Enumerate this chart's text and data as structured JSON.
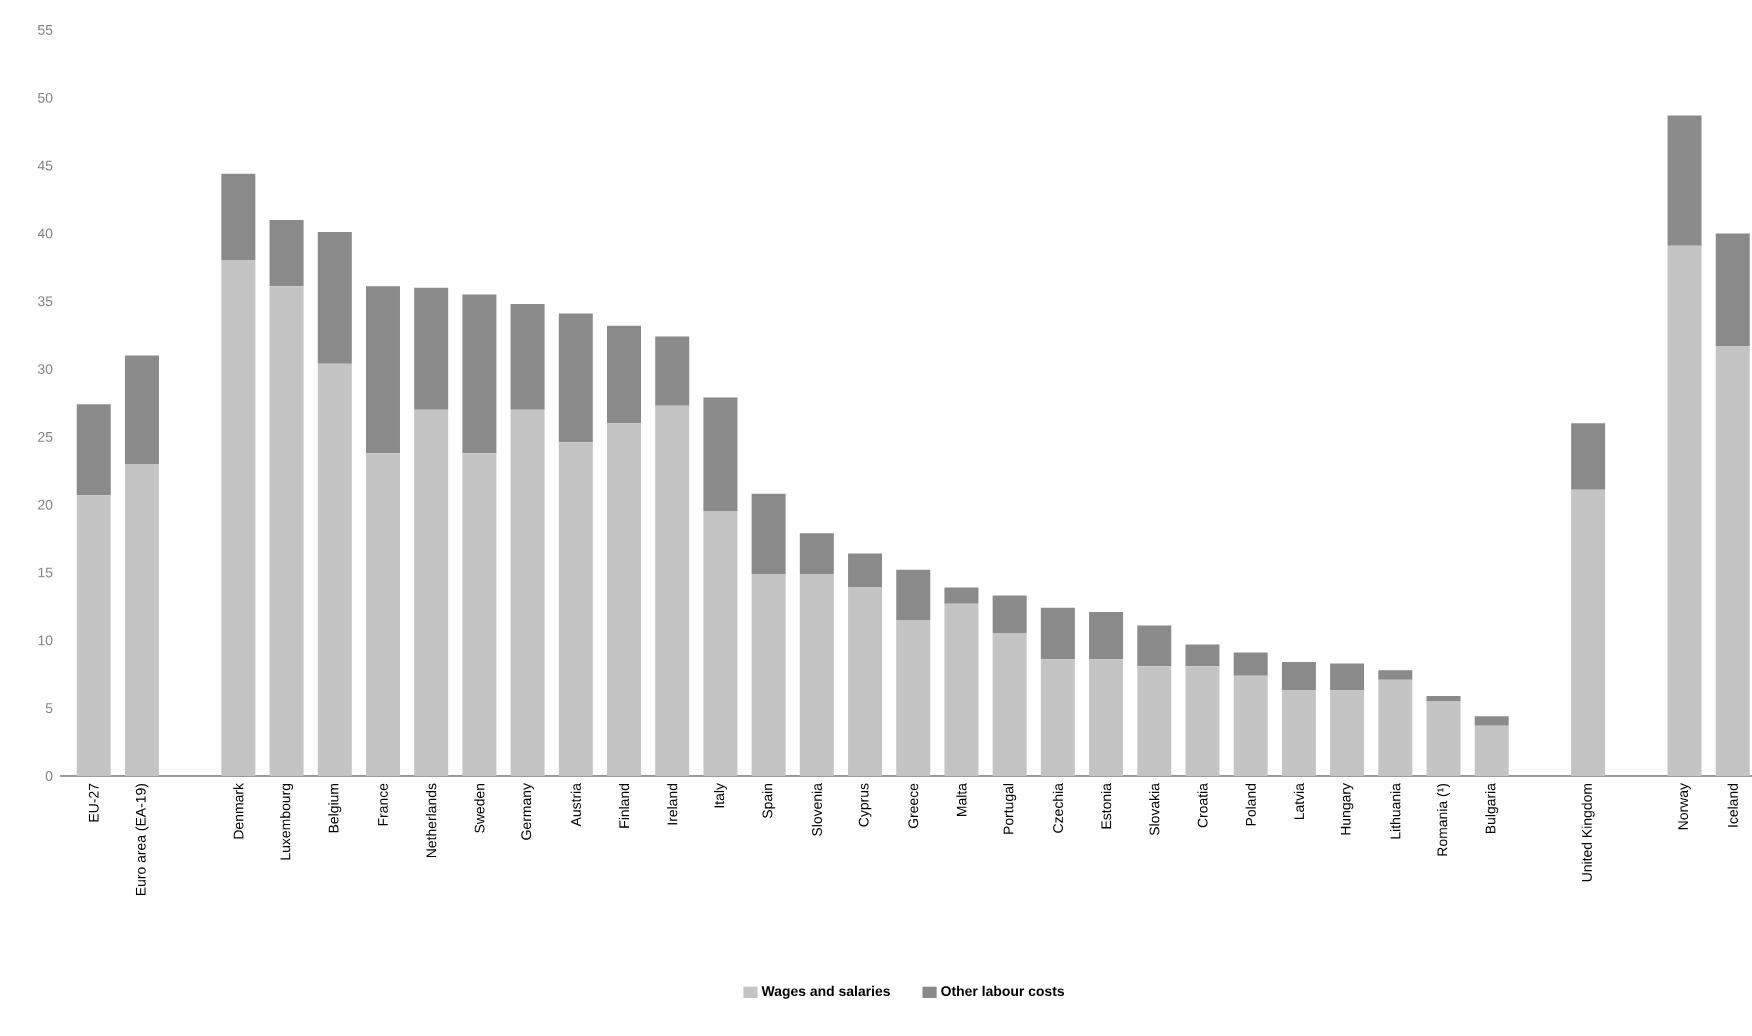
{
  "chart_data": {
    "type": "bar",
    "stacked": true,
    "legend": "bottom",
    "categories": [
      "EU-27",
      "Euro area (EA-19)",
      null,
      "Denmark",
      "Luxembourg",
      "Belgium",
      "France",
      "Netherlands",
      "Sweden",
      "Germany",
      "Austria",
      "Finland",
      "Ireland",
      "Italy",
      "Spain",
      "Slovenia",
      "Cyprus",
      "Greece",
      "Malta",
      "Portugal",
      "Czechia",
      "Estonia",
      "Slovakia",
      "Croatia",
      "Poland",
      "Latvia",
      "Hungary",
      "Lithuania",
      "Romania (¹)",
      "Bulgaria",
      null,
      "United Kingdom",
      null,
      "Norway",
      "Iceland"
    ],
    "series": [
      {
        "name": "Wages and salaries",
        "color": "#c4c4c4",
        "values": [
          20.7,
          23.0,
          null,
          38.0,
          36.1,
          30.4,
          23.8,
          27.0,
          23.8,
          27.0,
          24.6,
          26.0,
          27.3,
          19.5,
          14.9,
          14.9,
          13.9,
          11.5,
          12.7,
          10.5,
          8.6,
          8.6,
          8.1,
          8.1,
          7.4,
          6.3,
          6.3,
          7.1,
          5.5,
          3.7,
          null,
          21.1,
          null,
          39.1,
          31.7
        ]
      },
      {
        "name": "Other labour costs",
        "color": "#8a8a8a",
        "values": [
          6.7,
          8.0,
          null,
          6.4,
          4.9,
          9.7,
          12.3,
          9.0,
          11.7,
          7.8,
          9.5,
          7.2,
          5.1,
          8.4,
          5.9,
          3.0,
          2.5,
          3.7,
          1.2,
          2.8,
          3.8,
          3.5,
          3.0,
          1.6,
          1.7,
          2.1,
          2.0,
          0.7,
          0.4,
          0.7,
          null,
          4.9,
          null,
          9.6,
          8.3
        ]
      }
    ],
    "ylim": [
      0,
      55
    ],
    "yticks": [
      0,
      5,
      10,
      15,
      20,
      25,
      30,
      35,
      40,
      45,
      50,
      55
    ]
  }
}
